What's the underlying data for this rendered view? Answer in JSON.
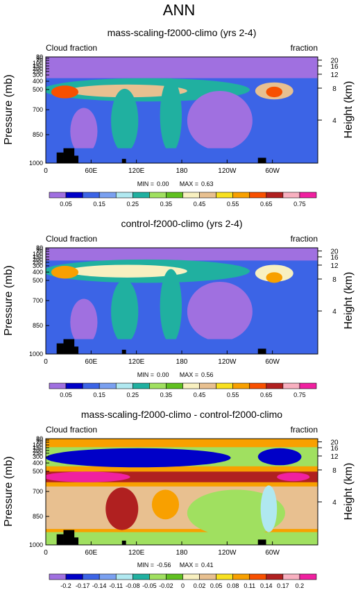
{
  "figure": {
    "title": "ANN"
  },
  "chart_data": [
    {
      "type": "heatmap",
      "title": "mass-scaling-f2000-climo (yrs 2-4)",
      "left_label": "Cloud fraction",
      "right_label": "fraction",
      "ylabel": "Pressure (mb)",
      "ylabel_right": "Height (km)",
      "x_ticks": [
        "0",
        "60E",
        "120E",
        "180",
        "120W",
        "60W"
      ],
      "p_ticks": [
        "30",
        "50",
        "70",
        "100",
        "150",
        "200",
        "250",
        "300",
        "400",
        "500",
        "700",
        "850",
        "1000"
      ],
      "height_ticks": [
        "20",
        "16",
        "12",
        "8",
        "4"
      ],
      "stats": {
        "min_label": "MIN =",
        "min": "0.00",
        "max_label": "MAX =",
        "max": "0.63"
      },
      "colorbar_labels": [
        "0.05",
        "0.15",
        "0.25",
        "0.35",
        "0.45",
        "0.55",
        "0.65",
        "0.75"
      ],
      "colorbar_colors": [
        "#a070e0",
        "#0000c8",
        "#3c64e6",
        "#7aa0f0",
        "#b0e8f0",
        "#20b0a0",
        "#a0e060",
        "#60c020",
        "#f8f0c0",
        "#e8c090",
        "#f8e020",
        "#f8a000",
        "#f85000",
        "#b02020",
        "#f8b0c0",
        "#f020a0"
      ],
      "field_levels": [
        0.03,
        0.12,
        0.28,
        0.48,
        0.63
      ]
    },
    {
      "type": "heatmap",
      "title": "control-f2000-climo (yrs 2-4)",
      "left_label": "Cloud fraction",
      "right_label": "fraction",
      "ylabel": "Pressure (mb)",
      "ylabel_right": "Height (km)",
      "x_ticks": [
        "0",
        "60E",
        "120E",
        "180",
        "120W",
        "60W"
      ],
      "p_ticks": [
        "30",
        "50",
        "70",
        "100",
        "150",
        "200",
        "250",
        "300",
        "400",
        "500",
        "700",
        "850",
        "1000"
      ],
      "height_ticks": [
        "20",
        "16",
        "12",
        "8",
        "4"
      ],
      "stats": {
        "min_label": "MIN =",
        "min": "0.00",
        "max_label": "MAX =",
        "max": "0.56"
      },
      "colorbar_labels": [
        "0.05",
        "0.15",
        "0.25",
        "0.35",
        "0.45",
        "0.55",
        "0.65",
        "0.75"
      ],
      "colorbar_colors": [
        "#a070e0",
        "#0000c8",
        "#3c64e6",
        "#7aa0f0",
        "#b0e8f0",
        "#20b0a0",
        "#a0e060",
        "#60c020",
        "#f8f0c0",
        "#e8c090",
        "#f8e020",
        "#f8a000",
        "#f85000",
        "#b02020",
        "#f8b0c0",
        "#f020a0"
      ],
      "field_levels": [
        0.03,
        0.12,
        0.26,
        0.42,
        0.56
      ]
    },
    {
      "type": "heatmap",
      "title": "mass-scaling-f2000-climo - control-f2000-climo",
      "left_label": "Cloud fraction",
      "right_label": "fraction",
      "ylabel": "Pressure (mb)",
      "ylabel_right": "Height (km)",
      "x_ticks": [
        "0",
        "60E",
        "120E",
        "180",
        "120W",
        "60W"
      ],
      "p_ticks": [
        "30",
        "50",
        "70",
        "100",
        "150",
        "200",
        "250",
        "300",
        "400",
        "500",
        "700",
        "850",
        "1000"
      ],
      "height_ticks": [
        "20",
        "16",
        "12",
        "8",
        "4"
      ],
      "stats": {
        "min_label": "MIN =",
        "min": "-0.56",
        "max_label": "MAX =",
        "max": "0.41"
      },
      "colorbar_labels": [
        "-0.2",
        "-0.17",
        "-0.14",
        "-0.11",
        "-0.08",
        "-0.05",
        "-0.02",
        "0",
        "0.02",
        "0.05",
        "0.08",
        "0.11",
        "0.14",
        "0.17",
        "0.2"
      ],
      "colorbar_colors": [
        "#a070e0",
        "#0000c8",
        "#3c64e6",
        "#7aa0f0",
        "#b0e8f0",
        "#20b0a0",
        "#a0e060",
        "#60c020",
        "#f8f0c0",
        "#e8c090",
        "#f8e020",
        "#f8a000",
        "#f85000",
        "#b02020",
        "#f8b0c0",
        "#f020a0"
      ],
      "field_levels": [
        -0.2,
        -0.05,
        0.02,
        0.08,
        0.14,
        0.2
      ]
    }
  ]
}
